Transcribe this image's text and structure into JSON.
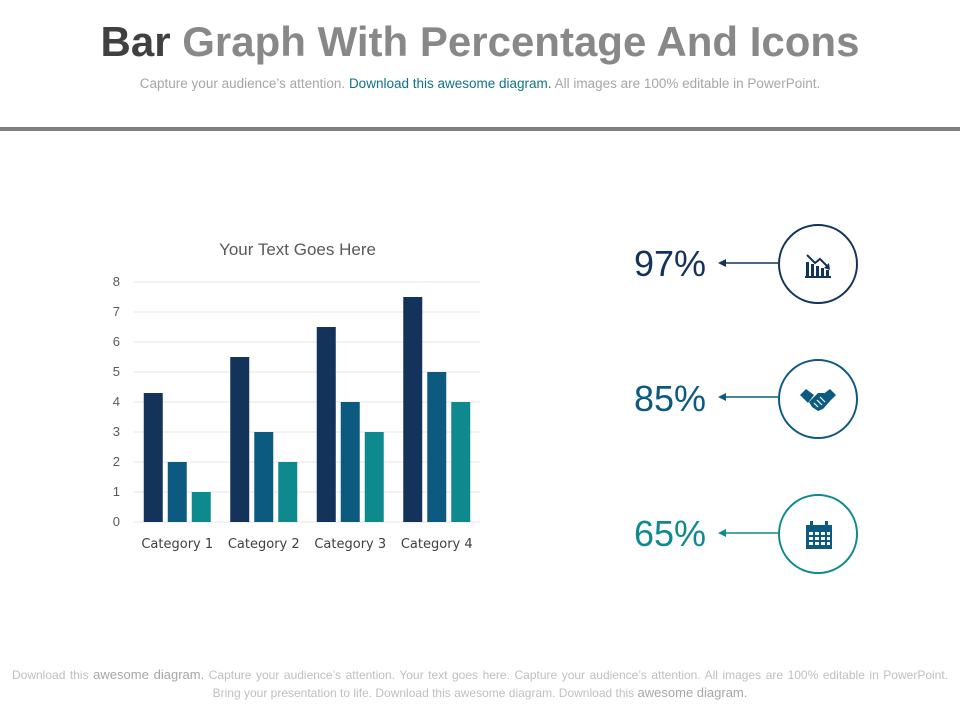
{
  "header": {
    "title_dark": "Bar",
    "title_light": "Graph With Percentage And Icons",
    "subtitle_start": "Capture your audience’s attention.",
    "subtitle_accent": "Download this awesome diagram.",
    "subtitle_end": "All images are 100% editable in PowerPoint."
  },
  "chart_data": {
    "type": "bar",
    "title": "Your Text Goes Here",
    "categories": [
      "Category 1",
      "Category 2",
      "Category 3",
      "Category 4"
    ],
    "series": [
      {
        "values": [
          4.3,
          5.5,
          6.5,
          7.5
        ],
        "color": "#13335a"
      },
      {
        "values": [
          2,
          3,
          4,
          5
        ],
        "color": "#0c5a80"
      },
      {
        "values": [
          1,
          2,
          3,
          4
        ],
        "color": "#0e8a8e"
      }
    ],
    "ylim": [
      0,
      8
    ],
    "yticks": [
      "0",
      "1",
      "2",
      "3",
      "4",
      "5",
      "6",
      "7",
      "8"
    ],
    "grid": true,
    "legend": "none"
  },
  "stats": [
    {
      "value": "97%",
      "color": "#13335a",
      "icon": "bar-chart-trend-icon"
    },
    {
      "value": "85%",
      "color": "#0c5a80",
      "icon": "handshake-icon"
    },
    {
      "value": "65%",
      "color": "#0e8a8e",
      "icon": "calendar-icon"
    }
  ],
  "footer": {
    "p1": "Download this",
    "e1": "awesome diagram.",
    "p2": "Capture your audience’s attention. Your text goes here. Capture your audience’s attention. All images are 100% editable in PowerPoint. Bring your presentation to life. Download this awesome diagram. Download this",
    "e2": "awesome diagram."
  }
}
